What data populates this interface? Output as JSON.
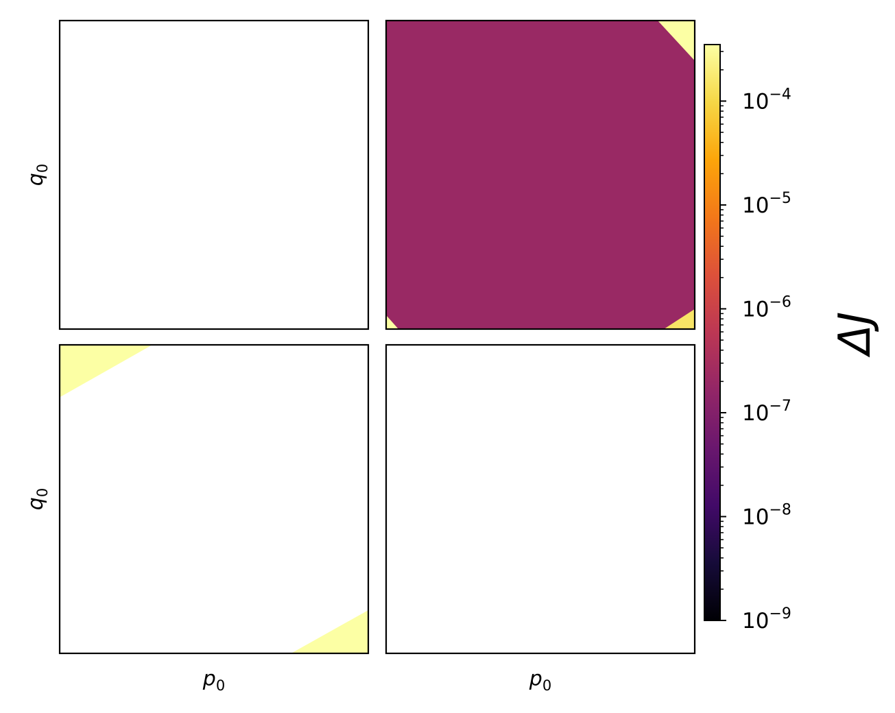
{
  "chart_data": {
    "type": "heatmap",
    "layout": "2x2 grid of panels with shared colorbar",
    "colormap": "inferno",
    "colorbar": {
      "label": "ΔJ",
      "scale": "log",
      "range": [
        1e-09,
        0.00035
      ],
      "ticks": [
        {
          "value": 1e-09,
          "base": "10",
          "exp": "−9"
        },
        {
          "value": 1e-08,
          "base": "10",
          "exp": "−8"
        },
        {
          "value": 1e-07,
          "base": "10",
          "exp": "−7"
        },
        {
          "value": 1e-06,
          "base": "10",
          "exp": "−6"
        },
        {
          "value": 1e-05,
          "base": "10",
          "exp": "−5"
        },
        {
          "value": 0.0001,
          "base": "10",
          "exp": "−4"
        }
      ]
    },
    "xlabel": {
      "base": "p",
      "sub": "0"
    },
    "ylabel": {
      "base": "q",
      "sub": "0"
    },
    "ticks_shown": false,
    "panels": [
      {
        "row": 0,
        "col": 0,
        "fill": null,
        "regions": []
      },
      {
        "row": 0,
        "col": 1,
        "fill": 2e-07,
        "regions": [
          {
            "value": 0.00035,
            "polygon": [
              [
                0.88,
                1.0
              ],
              [
                1.0,
                1.0
              ],
              [
                1.0,
                0.87
              ]
            ]
          },
          {
            "value": 0.00015,
            "polygon": [
              [
                0.9,
                0.0
              ],
              [
                1.0,
                0.0
              ],
              [
                1.0,
                0.065
              ]
            ]
          },
          {
            "value": 0.00035,
            "polygon": [
              [
                0.0,
                0.0
              ],
              [
                0.04,
                0.0
              ],
              [
                0.0,
                0.045
              ]
            ]
          }
        ]
      },
      {
        "row": 1,
        "col": 0,
        "fill": null,
        "regions": [
          {
            "value": 0.00035,
            "polygon": [
              [
                0.0,
                1.0
              ],
              [
                0.3,
                1.0
              ],
              [
                0.0,
                0.83
              ]
            ]
          },
          {
            "value": 0.00035,
            "polygon": [
              [
                0.75,
                0.0
              ],
              [
                1.0,
                0.0
              ],
              [
                1.0,
                0.14
              ]
            ]
          }
        ]
      },
      {
        "row": 1,
        "col": 1,
        "fill": null,
        "regions": []
      }
    ]
  }
}
